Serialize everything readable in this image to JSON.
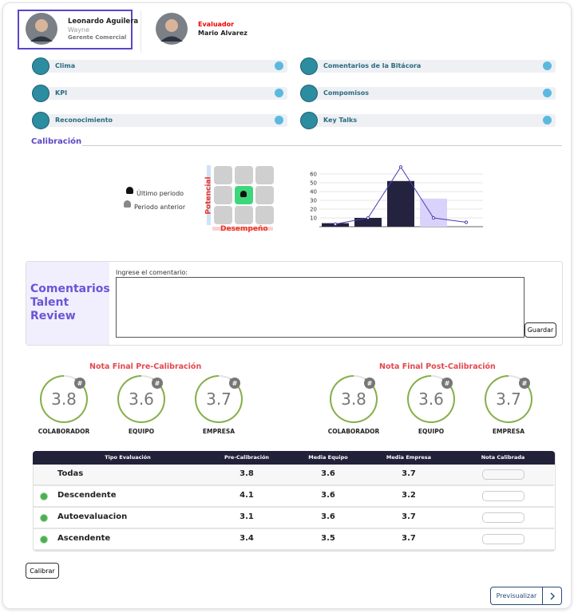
{
  "header": {
    "employee": {
      "name": "Leonardo Aguilera",
      "company": "Wayne",
      "role": "Gerente Comercial"
    },
    "evaluator": {
      "label": "Evaluador",
      "name": "Mario Alvarez"
    }
  },
  "sections": [
    {
      "label": "Clima"
    },
    {
      "label": "Comentarios de la Bitácora"
    },
    {
      "label": "KPI"
    },
    {
      "label": "Compomisos"
    },
    {
      "label": "Reconocimiento"
    },
    {
      "label": "Key Talks"
    }
  ],
  "calibration": {
    "title": "Calibración",
    "legend": [
      "Último periodo",
      "Periodo anterior"
    ],
    "matrix": {
      "y_label": "Potencial",
      "x_label": "Desempeño"
    }
  },
  "chart_data": {
    "type": "bar",
    "categories": [
      null,
      null,
      null,
      null,
      null
    ],
    "series": [
      {
        "type": "bar",
        "color": "#24233f",
        "values": [
          4,
          10,
          52,
          null,
          null
        ]
      },
      {
        "type": "bar",
        "color": "#d9d3fb",
        "values": [
          null,
          null,
          null,
          32,
          null
        ]
      },
      {
        "type": "line",
        "color": "#4b3fb0",
        "values": [
          3,
          10,
          68,
          10,
          5
        ]
      }
    ],
    "ylim": [
      0,
      70
    ],
    "yticks": [
      10,
      20,
      30,
      40,
      50,
      60
    ],
    "grid": true
  },
  "comments": {
    "title": "Comentarios Talent Review",
    "prompt": "Ingrese el comentario:",
    "button": "Guardar"
  },
  "scores": [
    {
      "title": "Nota Final Pre-Calibración",
      "badge": "#",
      "items": [
        {
          "value": 3.8,
          "label": "COLABORADOR"
        },
        {
          "value": 3.6,
          "label": "EQUIPO"
        },
        {
          "value": 3.7,
          "label": "EMPRESA"
        }
      ]
    },
    {
      "title": "Nota Final Post-Calibración",
      "badge": "#",
      "items": [
        {
          "value": 3.8,
          "label": "COLABORADOR"
        },
        {
          "value": 3.6,
          "label": "EQUIPO"
        },
        {
          "value": 3.7,
          "label": "EMPRESA"
        }
      ]
    }
  ],
  "table": {
    "columns": [
      "Tipo Evaluación",
      "Pre-Calibración",
      "Media Equipo",
      "Media Empresa",
      "Nota Calibrada"
    ],
    "rows": [
      [
        "Todas",
        3.8,
        3.6,
        3.7
      ],
      [
        "Descendente",
        4.1,
        3.6,
        3.2
      ],
      [
        "Autoevaluacion",
        3.1,
        3.6,
        3.7
      ],
      [
        "Ascendente",
        3.4,
        3.5,
        3.7
      ]
    ]
  },
  "buttons": {
    "calibrate": "Calibrar",
    "preview": "Previsualizar"
  }
}
